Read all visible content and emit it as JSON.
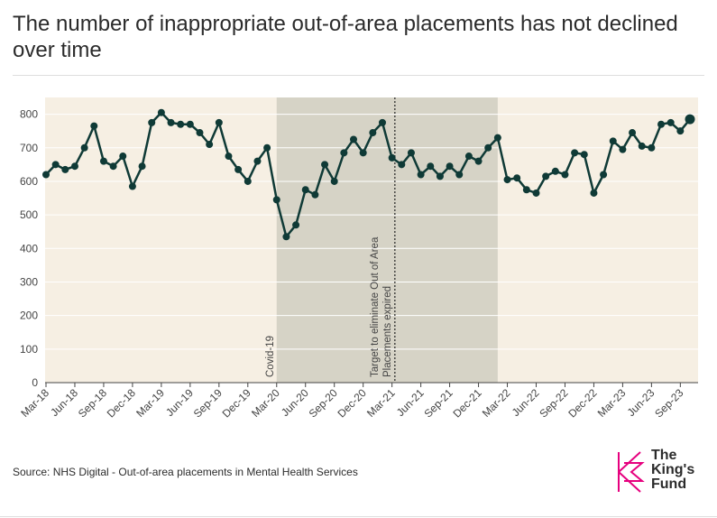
{
  "title": "The number of inappropriate out-of-area placements has not declined over time",
  "source": "Source: NHS Digital - Out-of-area placements in Mental Health Services",
  "logo": {
    "line1": "The",
    "line2": "King's",
    "line3": "Fund",
    "accent": "#e6007e"
  },
  "colors": {
    "line": "#0f3a36",
    "background": "#f6efe3",
    "shade": "#d6d3c6",
    "grid": "#ffffff",
    "axis": "#444444"
  },
  "chart_data": {
    "type": "line",
    "title": "The number of inappropriate out-of-area placements has not declined over time",
    "xlabel": "",
    "ylabel": "",
    "ylim": [
      0,
      850
    ],
    "yticks": [
      0,
      100,
      200,
      300,
      400,
      500,
      600,
      700,
      800
    ],
    "xtick_labels": [
      "Mar-18",
      "Jun-18",
      "Sep-18",
      "Dec-18",
      "Mar-19",
      "Jun-19",
      "Sep-19",
      "Dec-19",
      "Mar-20",
      "Jun-20",
      "Sep-20",
      "Dec-20",
      "Mar-21",
      "Jun-21",
      "Sep-21",
      "Dec-21",
      "Mar-22",
      "Jun-22",
      "Sep-22",
      "Dec-22",
      "Mar-23",
      "Jun-23",
      "Sep-23"
    ],
    "start_month": "Mar-18",
    "values": [
      620,
      650,
      635,
      645,
      700,
      765,
      660,
      645,
      675,
      585,
      645,
      775,
      805,
      775,
      770,
      770,
      745,
      710,
      775,
      675,
      635,
      600,
      660,
      700,
      545,
      435,
      470,
      575,
      560,
      650,
      600,
      685,
      725,
      685,
      745,
      775,
      670,
      650,
      685,
      620,
      645,
      615,
      645,
      620,
      675,
      660,
      700,
      730,
      605,
      610,
      575,
      565,
      615,
      630,
      620,
      685,
      680,
      565,
      620,
      720,
      695,
      745,
      705,
      700,
      770,
      775,
      750,
      785
    ],
    "shaded_regions": [
      {
        "start_index": 24,
        "end_index": 47
      }
    ],
    "annotations": [
      {
        "type": "vline",
        "label": "Covid-19",
        "index": 24,
        "style": "none"
      },
      {
        "type": "vline",
        "label_line1": "Target to eliminate Out of Area",
        "label_line2": "Placements expired",
        "index": 36.3,
        "style": "dotted"
      }
    ],
    "highlight_last_point": true
  }
}
